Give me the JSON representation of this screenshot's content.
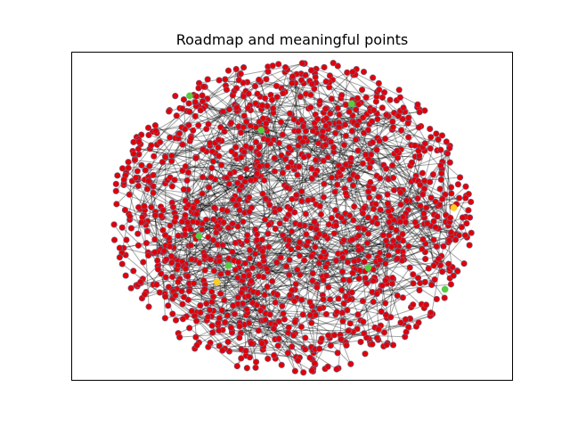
{
  "chart_data": {
    "type": "scatter",
    "title": "Roadmap and meaningful points",
    "xlabel": "",
    "ylabel": "",
    "axes_ticks_visible": false,
    "grid": false,
    "xlim": [
      0,
      1
    ],
    "ylim": [
      0,
      1
    ],
    "colors": {
      "roadmap_node": "#e0000a",
      "node_edge": "#6a6f8a",
      "roadmap_edge": "#000000",
      "meaningful_point": "#55cc44",
      "special_point": "#ffcc22",
      "axes_frame": "#000000"
    },
    "background_nodes": {
      "count": 1400,
      "center": [
        0.5,
        0.5
      ],
      "radius_x": 0.41,
      "radius_y": 0.48,
      "edges_per_node": 3
    },
    "series": [
      {
        "name": "",
        "role": "meaningful_points",
        "color": "#55cc44",
        "points": [
          {
            "x": 0.268,
            "y": 0.866
          },
          {
            "x": 0.635,
            "y": 0.842
          },
          {
            "x": 0.43,
            "y": 0.762
          },
          {
            "x": 0.289,
            "y": 0.44
          },
          {
            "x": 0.356,
            "y": 0.35
          },
          {
            "x": 0.672,
            "y": 0.343
          },
          {
            "x": 0.846,
            "y": 0.278
          }
        ]
      },
      {
        "name": "",
        "role": "special_points",
        "color": "#ffcc22",
        "points": [
          {
            "x": 0.866,
            "y": 0.526
          },
          {
            "x": 0.33,
            "y": 0.3
          }
        ]
      }
    ]
  }
}
